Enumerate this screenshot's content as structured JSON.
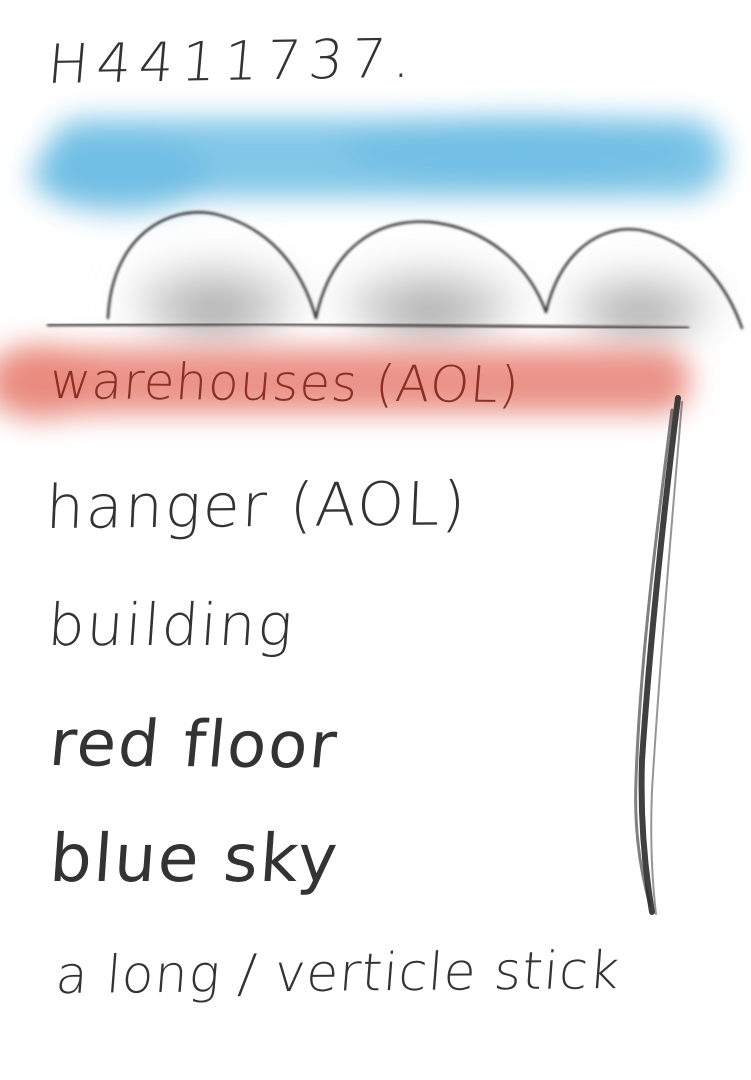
{
  "canvas": {
    "background": "#ffffff"
  },
  "note": {
    "code": "H4411737.",
    "lines": [
      "warehouses (AOL)",
      "hanger (AOL)",
      "building",
      "red floor",
      "blue sky",
      "a long / verticle stick"
    ]
  },
  "sketch": {
    "sky_color": "#6dbde4",
    "dome_shade_color": "#9a9a9a",
    "highlight_color": "#e9877b",
    "ink_color": "#333333",
    "dome_count": 3
  }
}
